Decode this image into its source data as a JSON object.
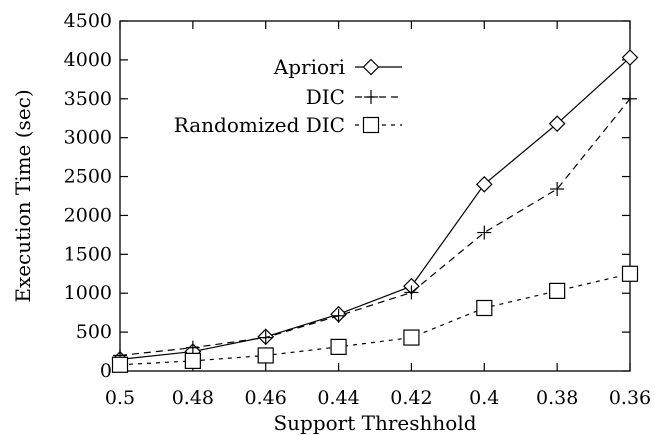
{
  "chart_data": {
    "type": "line",
    "xlabel": "Support Threshhold",
    "ylabel": "Execution Time (sec)",
    "x": [
      0.5,
      0.48,
      0.46,
      0.44,
      0.42,
      0.4,
      0.38,
      0.36
    ],
    "x_tick_labels": [
      "0.5",
      "0.48",
      "0.46",
      "0.44",
      "0.42",
      "0.4",
      "0.38",
      "0.36"
    ],
    "x_reversed": true,
    "xlim": [
      0.5,
      0.36
    ],
    "ylim": [
      0,
      4500
    ],
    "y_ticks": [
      0,
      500,
      1000,
      1500,
      2000,
      2500,
      3000,
      3500,
      4000,
      4500
    ],
    "y_tick_labels": [
      "0",
      "500",
      "1000",
      "1500",
      "2000",
      "2500",
      "3000",
      "3500",
      "4000",
      "4500"
    ],
    "grid": false,
    "legend_position": "top-center",
    "series": [
      {
        "name": "Apriori",
        "marker": "diamond",
        "line": "solid",
        "values": [
          150,
          250,
          440,
          730,
          1090,
          2400,
          3180,
          4030
        ]
      },
      {
        "name": "DIC",
        "marker": "plus",
        "line": "dashed",
        "values": [
          200,
          300,
          430,
          710,
          1010,
          1780,
          2340,
          3500
        ]
      },
      {
        "name": "Randomized DIC",
        "marker": "square",
        "line": "dotted",
        "values": [
          80,
          130,
          200,
          310,
          430,
          810,
          1030,
          1250
        ]
      }
    ]
  }
}
